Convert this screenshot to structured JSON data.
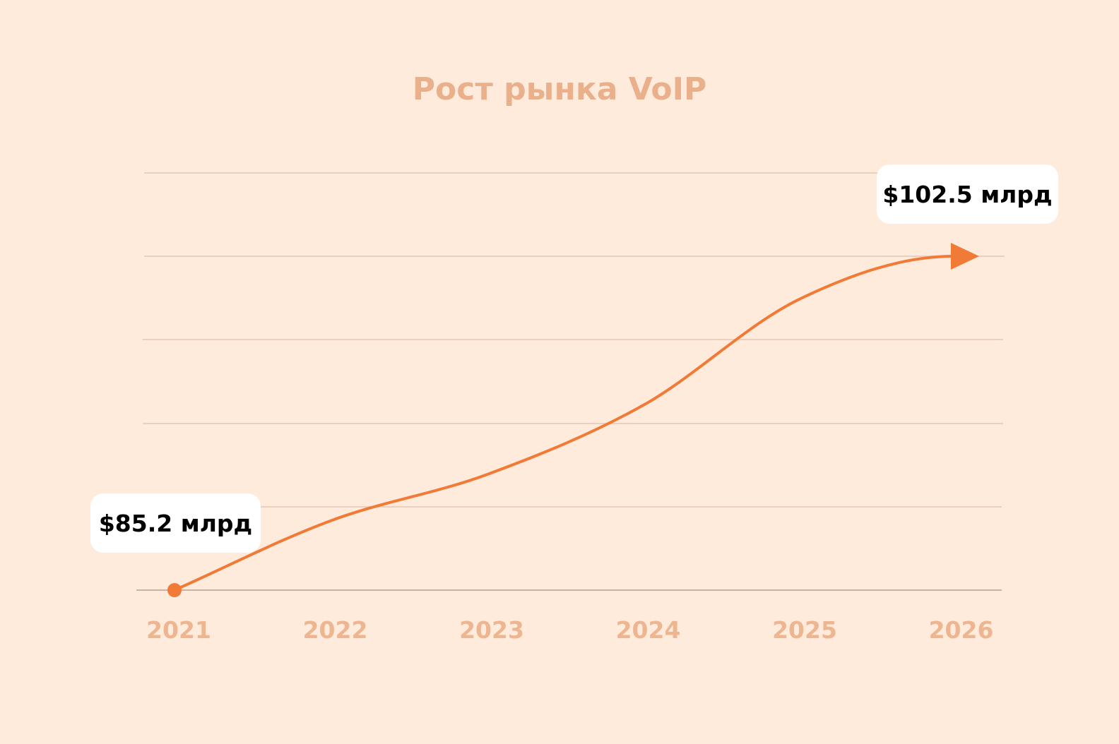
{
  "colors": {
    "background": "#FEEBDC",
    "accent": "#F07A36",
    "title": "#E9B08B",
    "tick_label": "#EDB590",
    "gridline": "#EBCFBF",
    "baseline": "#C9B2A6",
    "callout_bg": "#FFFFFF",
    "callout_text": "#000000"
  },
  "chart_data": {
    "type": "line",
    "title": "Рост рынка VoIP",
    "xlabel": "",
    "ylabel": "",
    "x": [
      "2021",
      "2022",
      "2023",
      "2024",
      "2025",
      "2026"
    ],
    "series": [
      {
        "values": [
          85.2,
          88.8,
          91.2,
          94.8,
          100.3,
          102.5
        ],
        "line_style": "smooth",
        "start_marker": "dot",
        "end_marker": "arrow"
      }
    ],
    "ylim": [
      85.2,
      102.5
    ],
    "gridlines": 6,
    "y_tick_labels": false,
    "grid": true,
    "annotations": [
      {
        "x": "2021",
        "value": 85.2,
        "text": "$85.2 млрд"
      },
      {
        "x": "2026",
        "value": 102.5,
        "text": "$102.5 млрд"
      }
    ]
  }
}
